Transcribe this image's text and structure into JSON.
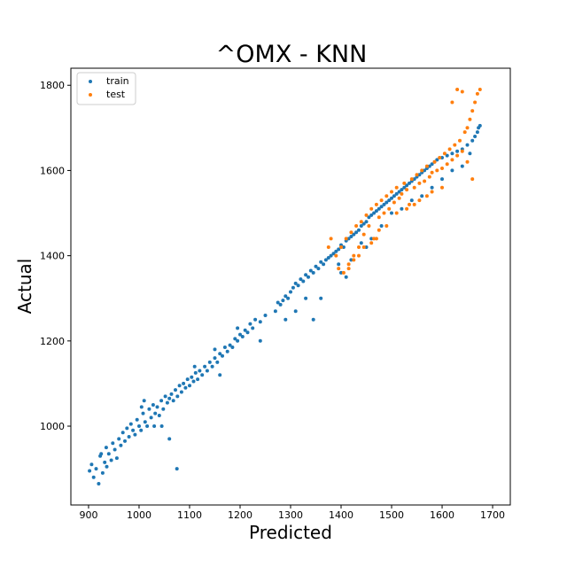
{
  "chart_data": {
    "type": "scatter",
    "title": "^OMX - KNN",
    "xlabel": "Predicted",
    "ylabel": "Actual",
    "xlim": [
      865,
      1735
    ],
    "ylim": [
      815,
      1840
    ],
    "xticks": [
      900,
      1000,
      1100,
      1200,
      1300,
      1400,
      1500,
      1600,
      1700
    ],
    "yticks": [
      1000,
      1200,
      1400,
      1600,
      1800
    ],
    "legend_position": "upper-left",
    "grid": false,
    "series": [
      {
        "name": "train",
        "color": "#1f77b4",
        "points": [
          [
            902,
            895
          ],
          [
            906,
            910
          ],
          [
            910,
            880
          ],
          [
            915,
            900
          ],
          [
            920,
            865
          ],
          [
            923,
            930
          ],
          [
            928,
            890
          ],
          [
            932,
            915
          ],
          [
            936,
            905
          ],
          [
            940,
            935
          ],
          [
            945,
            920
          ],
          [
            948,
            960
          ],
          [
            952,
            945
          ],
          [
            956,
            925
          ],
          [
            960,
            970
          ],
          [
            964,
            955
          ],
          [
            968,
            985
          ],
          [
            972,
            965
          ],
          [
            976,
            995
          ],
          [
            980,
            975
          ],
          [
            984,
            1005
          ],
          [
            988,
            990
          ],
          [
            992,
            980
          ],
          [
            996,
            1015
          ],
          [
            1000,
            1000
          ],
          [
            1004,
            990
          ],
          [
            1008,
            1030
          ],
          [
            1012,
            1010
          ],
          [
            1016,
            1000
          ],
          [
            1020,
            1040
          ],
          [
            1024,
            1020
          ],
          [
            1028,
            1050
          ],
          [
            1032,
            1030
          ],
          [
            1036,
            1045
          ],
          [
            1040,
            1025
          ],
          [
            1044,
            1060
          ],
          [
            1048,
            1040
          ],
          [
            1052,
            1070
          ],
          [
            1056,
            1055
          ],
          [
            1060,
            1065
          ],
          [
            1064,
            1075
          ],
          [
            1068,
            1060
          ],
          [
            1072,
            1085
          ],
          [
            1076,
            1070
          ],
          [
            1080,
            1095
          ],
          [
            1084,
            1080
          ],
          [
            1088,
            1100
          ],
          [
            1092,
            1090
          ],
          [
            1096,
            1110
          ],
          [
            1100,
            1095
          ],
          [
            1104,
            1115
          ],
          [
            1108,
            1105
          ],
          [
            1112,
            1125
          ],
          [
            1116,
            1110
          ],
          [
            1120,
            1130
          ],
          [
            1125,
            1120
          ],
          [
            1130,
            1140
          ],
          [
            1135,
            1130
          ],
          [
            1140,
            1150
          ],
          [
            1145,
            1140
          ],
          [
            1150,
            1160
          ],
          [
            1155,
            1150
          ],
          [
            1160,
            1170
          ],
          [
            1165,
            1165
          ],
          [
            1170,
            1185
          ],
          [
            1175,
            1175
          ],
          [
            1180,
            1190
          ],
          [
            1185,
            1185
          ],
          [
            1190,
            1205
          ],
          [
            1195,
            1200
          ],
          [
            1200,
            1215
          ],
          [
            1205,
            1210
          ],
          [
            1210,
            1225
          ],
          [
            1215,
            1220
          ],
          [
            1220,
            1240
          ],
          [
            1225,
            1230
          ],
          [
            1230,
            1250
          ],
          [
            1240,
            1245
          ],
          [
            1250,
            1260
          ],
          [
            1270,
            1270
          ],
          [
            1275,
            1290
          ],
          [
            1280,
            1285
          ],
          [
            1285,
            1295
          ],
          [
            1290,
            1305
          ],
          [
            1295,
            1300
          ],
          [
            1300,
            1315
          ],
          [
            1305,
            1325
          ],
          [
            1310,
            1335
          ],
          [
            1315,
            1330
          ],
          [
            1320,
            1345
          ],
          [
            1325,
            1340
          ],
          [
            1330,
            1355
          ],
          [
            1335,
            1350
          ],
          [
            1340,
            1365
          ],
          [
            1345,
            1360
          ],
          [
            1350,
            1375
          ],
          [
            1355,
            1370
          ],
          [
            1360,
            1385
          ],
          [
            1365,
            1380
          ],
          [
            1370,
            1390
          ],
          [
            1375,
            1395
          ],
          [
            1380,
            1400
          ],
          [
            1385,
            1405
          ],
          [
            1390,
            1410
          ],
          [
            1395,
            1415
          ],
          [
            1400,
            1425
          ],
          [
            1405,
            1420
          ],
          [
            1410,
            1435
          ],
          [
            1415,
            1440
          ],
          [
            1420,
            1445
          ],
          [
            1425,
            1450
          ],
          [
            1430,
            1455
          ],
          [
            1435,
            1460
          ],
          [
            1440,
            1470
          ],
          [
            1445,
            1475
          ],
          [
            1450,
            1480
          ],
          [
            1455,
            1490
          ],
          [
            1460,
            1495
          ],
          [
            1465,
            1500
          ],
          [
            1470,
            1505
          ],
          [
            1475,
            1510
          ],
          [
            1480,
            1515
          ],
          [
            1485,
            1520
          ],
          [
            1490,
            1525
          ],
          [
            1495,
            1530
          ],
          [
            1500,
            1535
          ],
          [
            1505,
            1540
          ],
          [
            1510,
            1545
          ],
          [
            1515,
            1550
          ],
          [
            1520,
            1555
          ],
          [
            1525,
            1560
          ],
          [
            1530,
            1565
          ],
          [
            1535,
            1570
          ],
          [
            1540,
            1575
          ],
          [
            1545,
            1580
          ],
          [
            1550,
            1585
          ],
          [
            1555,
            1590
          ],
          [
            1560,
            1595
          ],
          [
            1565,
            1600
          ],
          [
            1570,
            1605
          ],
          [
            1575,
            1610
          ],
          [
            1580,
            1615
          ],
          [
            1585,
            1620
          ],
          [
            1590,
            1625
          ],
          [
            1600,
            1630
          ],
          [
            1610,
            1635
          ],
          [
            1620,
            1640
          ],
          [
            1630,
            1645
          ],
          [
            1640,
            1650
          ],
          [
            1650,
            1660
          ],
          [
            1660,
            1670
          ],
          [
            1665,
            1680
          ],
          [
            1670,
            1690
          ],
          [
            1672,
            1700
          ],
          [
            1675,
            1705
          ],
          [
            925,
            935
          ],
          [
            935,
            950
          ],
          [
            1010,
            1060
          ],
          [
            1005,
            1045
          ],
          [
            1030,
            1000
          ],
          [
            1045,
            1000
          ],
          [
            1060,
            970
          ],
          [
            1075,
            900
          ],
          [
            1110,
            1140
          ],
          [
            1150,
            1180
          ],
          [
            1160,
            1120
          ],
          [
            1195,
            1230
          ],
          [
            1240,
            1200
          ],
          [
            1290,
            1250
          ],
          [
            1310,
            1270
          ],
          [
            1330,
            1300
          ],
          [
            1345,
            1250
          ],
          [
            1360,
            1300
          ],
          [
            1395,
            1380
          ],
          [
            1400,
            1360
          ],
          [
            1410,
            1350
          ],
          [
            1420,
            1390
          ],
          [
            1440,
            1430
          ],
          [
            1450,
            1420
          ],
          [
            1460,
            1440
          ],
          [
            1480,
            1470
          ],
          [
            1500,
            1500
          ],
          [
            1520,
            1510
          ],
          [
            1540,
            1530
          ],
          [
            1560,
            1540
          ],
          [
            1580,
            1560
          ],
          [
            1600,
            1580
          ],
          [
            1620,
            1600
          ],
          [
            1640,
            1610
          ],
          [
            1655,
            1640
          ]
        ]
      },
      {
        "name": "test",
        "color": "#ff7f0e",
        "points": [
          [
            1375,
            1420
          ],
          [
            1380,
            1440
          ],
          [
            1390,
            1400
          ],
          [
            1400,
            1420
          ],
          [
            1410,
            1440
          ],
          [
            1415,
            1380
          ],
          [
            1420,
            1455
          ],
          [
            1425,
            1400
          ],
          [
            1430,
            1470
          ],
          [
            1435,
            1420
          ],
          [
            1440,
            1480
          ],
          [
            1445,
            1450
          ],
          [
            1450,
            1495
          ],
          [
            1455,
            1470
          ],
          [
            1460,
            1510
          ],
          [
            1465,
            1440
          ],
          [
            1470,
            1520
          ],
          [
            1475,
            1490
          ],
          [
            1480,
            1530
          ],
          [
            1485,
            1500
          ],
          [
            1490,
            1540
          ],
          [
            1495,
            1510
          ],
          [
            1500,
            1550
          ],
          [
            1505,
            1525
          ],
          [
            1510,
            1560
          ],
          [
            1515,
            1535
          ],
          [
            1520,
            1545
          ],
          [
            1525,
            1570
          ],
          [
            1530,
            1555
          ],
          [
            1535,
            1520
          ],
          [
            1540,
            1580
          ],
          [
            1545,
            1560
          ],
          [
            1550,
            1590
          ],
          [
            1555,
            1570
          ],
          [
            1560,
            1600
          ],
          [
            1565,
            1575
          ],
          [
            1570,
            1610
          ],
          [
            1575,
            1585
          ],
          [
            1580,
            1595
          ],
          [
            1585,
            1620
          ],
          [
            1590,
            1600
          ],
          [
            1595,
            1630
          ],
          [
            1600,
            1605
          ],
          [
            1605,
            1640
          ],
          [
            1610,
            1615
          ],
          [
            1615,
            1650
          ],
          [
            1620,
            1625
          ],
          [
            1625,
            1660
          ],
          [
            1630,
            1635
          ],
          [
            1635,
            1670
          ],
          [
            1640,
            1645
          ],
          [
            1645,
            1690
          ],
          [
            1650,
            1700
          ],
          [
            1655,
            1720
          ],
          [
            1660,
            1740
          ],
          [
            1665,
            1760
          ],
          [
            1670,
            1780
          ],
          [
            1675,
            1790
          ],
          [
            1640,
            1785
          ],
          [
            1630,
            1790
          ],
          [
            1620,
            1760
          ],
          [
            1650,
            1620
          ],
          [
            1660,
            1580
          ],
          [
            1600,
            1560
          ],
          [
            1580,
            1550
          ],
          [
            1570,
            1540
          ],
          [
            1555,
            1530
          ],
          [
            1545,
            1520
          ],
          [
            1530,
            1510
          ],
          [
            1510,
            1500
          ],
          [
            1490,
            1470
          ],
          [
            1475,
            1460
          ],
          [
            1470,
            1440
          ],
          [
            1460,
            1430
          ],
          [
            1445,
            1420
          ],
          [
            1435,
            1400
          ],
          [
            1425,
            1390
          ],
          [
            1415,
            1370
          ],
          [
            1405,
            1360
          ],
          [
            1395,
            1370
          ]
        ]
      }
    ]
  }
}
